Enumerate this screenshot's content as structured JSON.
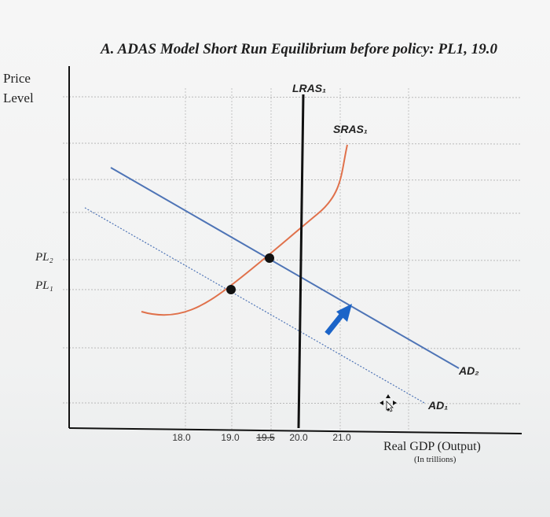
{
  "chart_data": {
    "type": "line",
    "title": "A. ADAS Model Short Run Equilibrium before policy: PL1, 19.0",
    "ylabel": "Price\nLevel",
    "xlabel": "Real GDP (Output)",
    "xlabel_sub": "(In trillions)",
    "x_ticks": [
      "18.0",
      "19.0",
      "19.5",
      "20.0",
      "21.0"
    ],
    "price_levels": [
      {
        "label": "PL₂",
        "value": "PL2"
      },
      {
        "label": "PL₁",
        "value": "PL1"
      }
    ],
    "grid": true,
    "series": [
      {
        "name": "LRAS₁",
        "kind": "vertical",
        "x": 20.0,
        "color": "#111111"
      },
      {
        "name": "SRAS₁",
        "kind": "curve",
        "color": "#e0714b"
      },
      {
        "name": "AD₁",
        "kind": "line",
        "style": "dotted",
        "color": "#4e74b6"
      },
      {
        "name": "AD₂",
        "kind": "line",
        "style": "solid",
        "color": "#4e74b6"
      }
    ],
    "equilibria": [
      {
        "x": 19.0,
        "price": "PL1"
      },
      {
        "x": 19.5,
        "price": "PL2"
      }
    ],
    "annotations": [
      {
        "type": "arrow",
        "meaning": "AD shift right",
        "color": "#1b64c8"
      }
    ]
  },
  "colors": {
    "sras": "#e0714b",
    "ad": "#4e74b6",
    "lras": "#111111",
    "arrow": "#1b64c8"
  }
}
